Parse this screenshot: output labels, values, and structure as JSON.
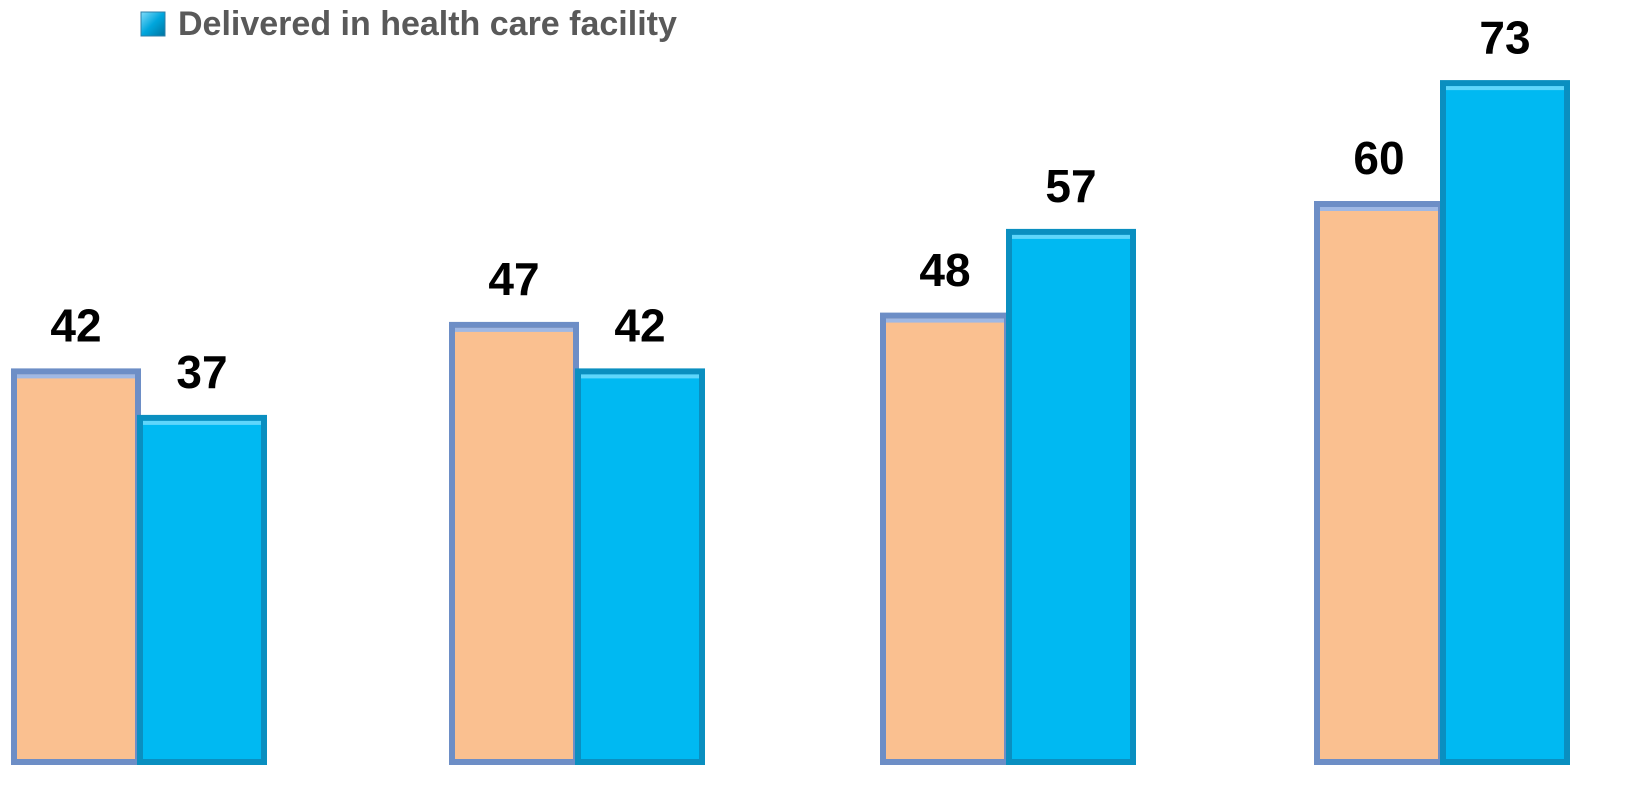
{
  "chart_data": {
    "type": "bar",
    "series": [
      {
        "color": "#fac090",
        "values": [
          42,
          47,
          48,
          60
        ]
      },
      {
        "name": "Delivered in health care facility",
        "color": "#00b9f2",
        "values": [
          37,
          42,
          57,
          73
        ]
      }
    ],
    "ylim": [
      0,
      80
    ]
  }
}
